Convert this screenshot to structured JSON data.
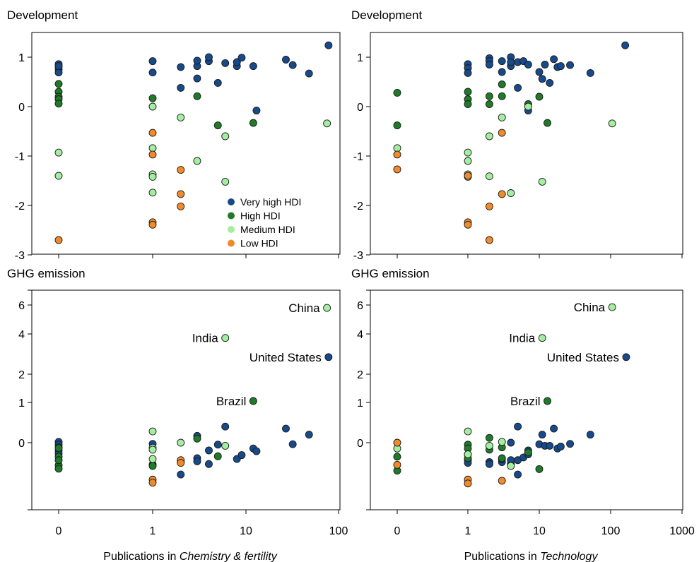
{
  "colors": {
    "Very high HDI": "#174a8b",
    "High HDI": "#1e7b28",
    "Medium HDI": "#a3eea0",
    "Low HDI": "#f08a2a"
  },
  "chart_data": [
    {
      "type": "scatter",
      "title": "Development",
      "xscale": "log1p",
      "xticks": [
        "0",
        "1",
        "10",
        "100"
      ],
      "yticks": [
        "1",
        "0",
        "-1",
        "-2",
        "-3"
      ],
      "ylim": [
        -3,
        1.4
      ],
      "legend": {
        "placement": "bottom-right",
        "entries": [
          "Very high HDI",
          "High HDI",
          "Medium HDI",
          "Low HDI"
        ]
      },
      "series": [
        {
          "name": "Very high HDI",
          "points": [
            [
              0,
              0.86
            ],
            [
              0,
              0.81
            ],
            [
              0,
              0.75
            ],
            [
              0,
              0.69
            ],
            [
              0,
              0.82
            ],
            [
              1,
              0.92
            ],
            [
              1,
              0.69
            ],
            [
              2,
              0.38
            ],
            [
              2,
              0.8
            ],
            [
              3,
              0.82
            ],
            [
              3,
              0.93
            ],
            [
              3,
              0.57
            ],
            [
              4,
              0.92
            ],
            [
              4,
              1.0
            ],
            [
              5,
              0.48
            ],
            [
              6,
              0.88
            ],
            [
              8,
              0.82
            ],
            [
              8,
              0.9
            ],
            [
              9,
              0.99
            ],
            [
              12,
              0.82
            ],
            [
              13,
              -0.08
            ],
            [
              27,
              0.95
            ],
            [
              32,
              0.84
            ],
            [
              48,
              0.67
            ],
            [
              78,
              1.24
            ]
          ]
        },
        {
          "name": "High HDI",
          "points": [
            [
              0,
              0.46
            ],
            [
              0,
              0.3
            ],
            [
              0,
              0.2
            ],
            [
              0,
              0.15
            ],
            [
              0,
              0.06
            ],
            [
              1,
              0.17
            ],
            [
              3,
              0.21
            ],
            [
              5,
              -0.38
            ],
            [
              12,
              -0.33
            ]
          ]
        },
        {
          "name": "Medium HDI",
          "points": [
            [
              0,
              -0.93
            ],
            [
              0,
              -1.4
            ],
            [
              1,
              0.0
            ],
            [
              1,
              -0.84
            ],
            [
              1,
              -1.37
            ],
            [
              1,
              -1.42
            ],
            [
              1,
              -1.74
            ],
            [
              2,
              -0.22
            ],
            [
              3,
              -1.1
            ],
            [
              6,
              -0.6
            ],
            [
              6,
              -1.52
            ],
            [
              75,
              -0.34
            ]
          ]
        },
        {
          "name": "Low HDI",
          "points": [
            [
              0,
              -2.7
            ],
            [
              1,
              -0.53
            ],
            [
              1,
              -0.97
            ],
            [
              1,
              -2.34
            ],
            [
              1,
              -2.39
            ],
            [
              2,
              -1.28
            ],
            [
              2,
              -1.77
            ],
            [
              2,
              -2.02
            ]
          ]
        }
      ]
    },
    {
      "type": "scatter",
      "title": "Development",
      "xscale": "log1p",
      "xticks": [
        "0",
        "1",
        "10",
        "100",
        "1000"
      ],
      "yticks": [
        "1",
        "0",
        "-1",
        "-2",
        "-3"
      ],
      "ylim": [
        -3,
        1.4
      ],
      "series": [
        {
          "name": "Very high HDI",
          "points": [
            [
              1,
              0.86
            ],
            [
              1,
              0.78
            ],
            [
              1,
              0.68
            ],
            [
              2,
              0.98
            ],
            [
              2,
              0.92
            ],
            [
              2,
              0.85
            ],
            [
              3,
              0.7
            ],
            [
              3,
              0.92
            ],
            [
              4,
              1.0
            ],
            [
              4,
              0.82
            ],
            [
              4,
              0.9
            ],
            [
              5,
              0.38
            ],
            [
              5,
              0.9
            ],
            [
              6,
              0.92
            ],
            [
              7,
              0.85
            ],
            [
              7,
              -0.08
            ],
            [
              10,
              0.7
            ],
            [
              11,
              0.56
            ],
            [
              12,
              0.85
            ],
            [
              14,
              0.48
            ],
            [
              16,
              0.96
            ],
            [
              18,
              0.8
            ],
            [
              20,
              0.82
            ],
            [
              27,
              0.84
            ],
            [
              52,
              0.68
            ],
            [
              160,
              1.24
            ]
          ]
        },
        {
          "name": "High HDI",
          "points": [
            [
              0,
              0.28
            ],
            [
              0,
              -0.38
            ],
            [
              1,
              0.3
            ],
            [
              1,
              0.15
            ],
            [
              1,
              0.05
            ],
            [
              2,
              0.21
            ],
            [
              2,
              0.05
            ],
            [
              3,
              0.45
            ],
            [
              3,
              0.21
            ],
            [
              7,
              0.05
            ],
            [
              10,
              0.2
            ],
            [
              13,
              -0.33
            ]
          ]
        },
        {
          "name": "Medium HDI",
          "points": [
            [
              0,
              -0.84
            ],
            [
              1,
              -0.93
            ],
            [
              1,
              -1.1
            ],
            [
              1,
              -1.37
            ],
            [
              1,
              -1.42
            ],
            [
              2,
              -0.6
            ],
            [
              2,
              -1.41
            ],
            [
              3,
              -0.22
            ],
            [
              4,
              -1.75
            ],
            [
              7,
              0.0
            ],
            [
              11,
              -1.52
            ],
            [
              105,
              -0.34
            ]
          ]
        },
        {
          "name": "Low HDI",
          "points": [
            [
              0,
              -0.97
            ],
            [
              0,
              -1.27
            ],
            [
              1,
              -1.4
            ],
            [
              1,
              -2.34
            ],
            [
              1,
              -2.39
            ],
            [
              2,
              -2.02
            ],
            [
              2,
              -2.7
            ],
            [
              3,
              -0.53
            ],
            [
              3,
              -1.77
            ]
          ]
        }
      ]
    },
    {
      "type": "scatter",
      "title": "GHG emission",
      "xscale": "log1p",
      "xlabel_prefix": "Publications in ",
      "xlabel_italic": "Chemistry & fertility",
      "xticks": [
        "0",
        "1",
        "10",
        "100"
      ],
      "yticks": [
        "6",
        "4",
        "2",
        "1",
        "0"
      ],
      "annotations": [
        {
          "text": "China",
          "x": 75,
          "y": 5.8
        },
        {
          "text": "India",
          "x": 6,
          "y": 3.8
        },
        {
          "text": "United States",
          "x": 78,
          "y": 2.85
        },
        {
          "text": "Brazil",
          "x": 12,
          "y": 1.05
        }
      ],
      "series": [
        {
          "name": "Very high HDI",
          "points": [
            [
              0,
              0.02
            ],
            [
              0,
              -0.05
            ],
            [
              0,
              -0.12
            ],
            [
              0,
              -0.2
            ],
            [
              0,
              -0.28
            ],
            [
              1,
              -0.03
            ],
            [
              1,
              -0.56
            ],
            [
              2,
              -0.82
            ],
            [
              2,
              -0.5
            ],
            [
              3,
              0.17
            ],
            [
              3,
              -0.4
            ],
            [
              3,
              -0.48
            ],
            [
              4,
              -0.2
            ],
            [
              4,
              -0.55
            ],
            [
              5,
              -0.05
            ],
            [
              6,
              0.4
            ],
            [
              8,
              -0.42
            ],
            [
              9,
              -0.32
            ],
            [
              12,
              -0.15
            ],
            [
              13,
              -0.22
            ],
            [
              27,
              0.35
            ],
            [
              32,
              -0.04
            ],
            [
              48,
              0.2
            ],
            [
              78,
              2.85
            ]
          ]
        },
        {
          "name": "High HDI",
          "points": [
            [
              0,
              -0.58
            ],
            [
              0,
              -0.67
            ],
            [
              0,
              -0.36
            ],
            [
              0,
              -0.45
            ],
            [
              0,
              -0.14
            ],
            [
              1,
              -0.6
            ],
            [
              3,
              0.1
            ],
            [
              5,
              -0.35
            ],
            [
              12,
              1.05
            ]
          ]
        },
        {
          "name": "Medium HDI",
          "points": [
            [
              1,
              0.28
            ],
            [
              1,
              -0.13
            ],
            [
              1,
              -0.18
            ],
            [
              1,
              -0.42
            ],
            [
              2,
              0.0
            ],
            [
              6,
              -0.08
            ],
            [
              6,
              3.8
            ],
            [
              75,
              5.8
            ]
          ]
        },
        {
          "name": "Low HDI",
          "points": [
            [
              1,
              -0.95
            ],
            [
              1,
              -1.03
            ],
            [
              2,
              -0.45
            ],
            [
              2,
              -0.52
            ]
          ]
        }
      ]
    },
    {
      "type": "scatter",
      "title": "GHG emission",
      "xscale": "log1p",
      "xlabel_prefix": "Publications in ",
      "xlabel_italic": "Technology",
      "xticks": [
        "0",
        "1",
        "10",
        "100",
        "1000"
      ],
      "yticks": [
        "6",
        "4",
        "2",
        "1",
        "0"
      ],
      "annotations": [
        {
          "text": "China",
          "x": 105,
          "y": 5.85
        },
        {
          "text": "India",
          "x": 11,
          "y": 3.8
        },
        {
          "text": "United States",
          "x": 165,
          "y": 2.85
        },
        {
          "text": "Brazil",
          "x": 13,
          "y": 1.05
        }
      ],
      "series": [
        {
          "name": "Very high HDI",
          "points": [
            [
              1,
              -0.3
            ],
            [
              1,
              -0.45
            ],
            [
              1,
              -0.52
            ],
            [
              2,
              -0.5
            ],
            [
              2,
              -0.55
            ],
            [
              3,
              -0.5
            ],
            [
              3,
              -0.42
            ],
            [
              4,
              -0.55
            ],
            [
              4,
              -0.45
            ],
            [
              4,
              0.0
            ],
            [
              5,
              -0.45
            ],
            [
              5,
              0.4
            ],
            [
              5,
              -0.82
            ],
            [
              6,
              -0.38
            ],
            [
              7,
              -0.2
            ],
            [
              7,
              -0.3
            ],
            [
              10,
              -0.04
            ],
            [
              11,
              0.2
            ],
            [
              12,
              -0.08
            ],
            [
              14,
              -0.08
            ],
            [
              16,
              0.35
            ],
            [
              18,
              -0.15
            ],
            [
              20,
              -0.1
            ],
            [
              27,
              -0.03
            ],
            [
              52,
              0.2
            ],
            [
              165,
              2.85
            ]
          ]
        },
        {
          "name": "High HDI",
          "points": [
            [
              0,
              -0.72
            ],
            [
              0,
              -0.36
            ],
            [
              1,
              -0.05
            ],
            [
              1,
              -0.15
            ],
            [
              1,
              -0.4
            ],
            [
              2,
              0.12
            ],
            [
              2,
              -0.18
            ],
            [
              3,
              -0.12
            ],
            [
              3,
              -0.4
            ],
            [
              7,
              -0.25
            ],
            [
              10,
              -0.68
            ],
            [
              13,
              1.05
            ]
          ]
        },
        {
          "name": "Medium HDI",
          "points": [
            [
              0,
              -0.15
            ],
            [
              1,
              0.28
            ],
            [
              1,
              -0.3
            ],
            [
              2,
              -0.08
            ],
            [
              3,
              0.02
            ],
            [
              4,
              -0.6
            ],
            [
              105,
              5.85
            ],
            [
              11,
              3.8
            ]
          ]
        },
        {
          "name": "Low HDI",
          "points": [
            [
              0,
              0.0
            ],
            [
              0,
              -0.57
            ],
            [
              1,
              -0.95
            ],
            [
              1,
              -1.05
            ],
            [
              3,
              -0.98
            ]
          ]
        }
      ]
    }
  ]
}
